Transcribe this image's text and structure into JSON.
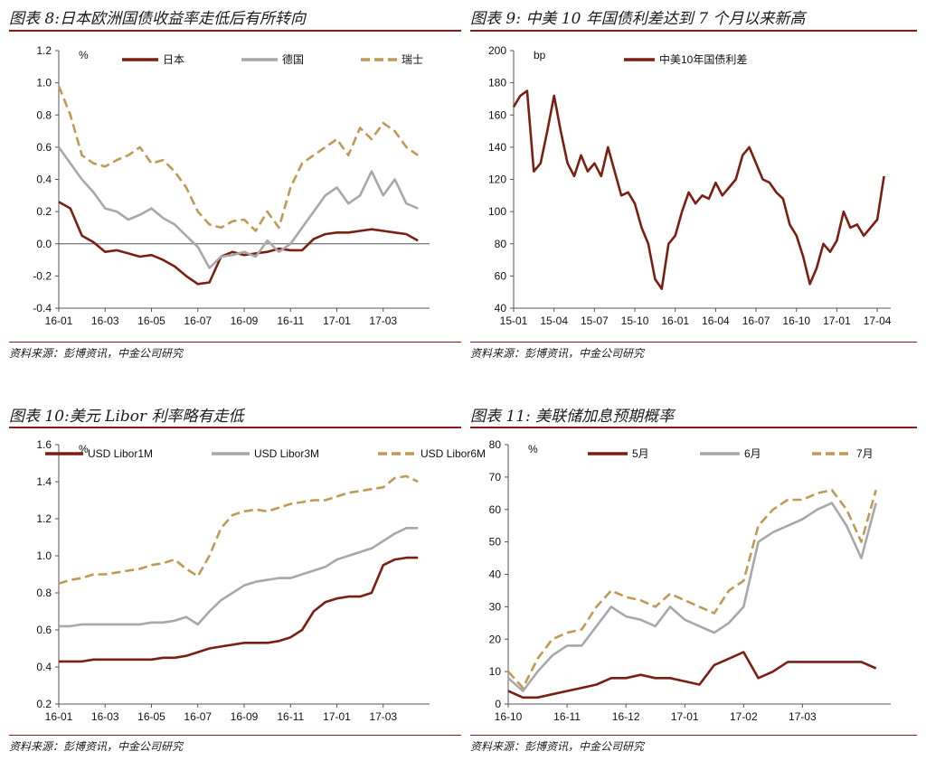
{
  "panels": [
    {
      "title": "图表 8:日本欧洲国债收益率走低后有所转向",
      "source": "资料来源：彭博资讯，中金公司研究"
    },
    {
      "title": "图表 9:  中美 10 年国债利差达到 7 个月以来新高",
      "source": "资料来源：彭博资讯，中金公司研究"
    },
    {
      "title": "图表 10:美元 Libor 利率略有走低",
      "source": "资料来源：彭博资讯，中金公司研究"
    },
    {
      "title": "图表 11:  美联储加息预期概率",
      "source": "资料来源：彭博资讯，中金公司研究"
    }
  ],
  "chart_data": [
    {
      "type": "line",
      "title": "图表 8:日本欧洲国债收益率走低后有所转向",
      "unit_label": "%",
      "ylim": [
        -0.4,
        1.2
      ],
      "yticks": [
        -0.4,
        -0.2,
        0.0,
        0.2,
        0.4,
        0.6,
        0.8,
        1.0,
        1.2
      ],
      "ytick_labels": [
        "-0.4",
        "-0.2",
        "0.0",
        "0.2",
        "0.4",
        "0.6",
        "0.8",
        "1.0",
        "1.2"
      ],
      "xlim": [
        0,
        16
      ],
      "xticks": [
        0,
        2,
        4,
        6,
        8,
        10,
        12,
        14
      ],
      "xtick_labels": [
        "16-01",
        "16-03",
        "16-05",
        "16-07",
        "16-09",
        "16-11",
        "17-01",
        "17-03"
      ],
      "zero_line": true,
      "x": [
        0,
        0.5,
        1,
        1.5,
        2,
        2.5,
        3,
        3.5,
        4,
        4.5,
        5,
        5.5,
        6,
        6.5,
        7,
        7.5,
        8,
        8.5,
        9,
        9.5,
        10,
        10.5,
        11,
        11.5,
        12,
        12.5,
        13,
        13.5,
        14,
        14.5,
        15,
        15.5
      ],
      "series": [
        {
          "name": "日本",
          "color": "#7a1f12",
          "dash": "",
          "values": [
            0.26,
            0.22,
            0.05,
            0.01,
            -0.05,
            -0.04,
            -0.06,
            -0.08,
            -0.07,
            -0.1,
            -0.14,
            -0.2,
            -0.25,
            -0.24,
            -0.08,
            -0.05,
            -0.07,
            -0.06,
            -0.05,
            -0.03,
            -0.04,
            -0.04,
            0.03,
            0.06,
            0.07,
            0.07,
            0.08,
            0.09,
            0.08,
            0.07,
            0.06,
            0.02
          ]
        },
        {
          "name": "德国",
          "color": "#a8a8a8",
          "dash": "",
          "values": [
            0.6,
            0.5,
            0.4,
            0.32,
            0.22,
            0.2,
            0.15,
            0.18,
            0.22,
            0.16,
            0.12,
            0.05,
            -0.02,
            -0.15,
            -0.08,
            -0.07,
            -0.05,
            -0.08,
            0.02,
            -0.05,
            0.0,
            0.1,
            0.2,
            0.3,
            0.35,
            0.25,
            0.3,
            0.45,
            0.3,
            0.4,
            0.25,
            0.22
          ]
        },
        {
          "name": "瑞士",
          "color": "#c09a55",
          "dash": "10,5",
          "values": [
            0.98,
            0.8,
            0.55,
            0.5,
            0.48,
            0.52,
            0.55,
            0.6,
            0.5,
            0.52,
            0.45,
            0.35,
            0.2,
            0.12,
            0.1,
            0.14,
            0.15,
            0.08,
            0.2,
            0.1,
            0.35,
            0.5,
            0.55,
            0.6,
            0.65,
            0.55,
            0.72,
            0.65,
            0.75,
            0.7,
            0.6,
            0.55
          ]
        }
      ]
    },
    {
      "type": "line",
      "title": "图表 9:  中美 10 年国债利差达到 7 个月以来新高",
      "unit_label": "bp",
      "ylim": [
        40,
        200
      ],
      "yticks": [
        40,
        60,
        80,
        100,
        120,
        140,
        160,
        180,
        200
      ],
      "ytick_labels": [
        "40",
        "60",
        "80",
        "100",
        "120",
        "140",
        "160",
        "180",
        "200"
      ],
      "xlim": [
        0,
        28
      ],
      "xticks": [
        0,
        3,
        6,
        9,
        12,
        15,
        18,
        21,
        24,
        27
      ],
      "xtick_labels": [
        "15-01",
        "15-04",
        "15-07",
        "15-10",
        "16-01",
        "16-04",
        "16-07",
        "16-10",
        "17-01",
        "17-04"
      ],
      "zero_line": false,
      "x": [
        0,
        0.5,
        1,
        1.5,
        2,
        2.5,
        3,
        3.5,
        4,
        4.5,
        5,
        5.5,
        6,
        6.5,
        7,
        7.5,
        8,
        8.5,
        9,
        9.5,
        10,
        10.5,
        11,
        11.5,
        12,
        12.5,
        13,
        13.5,
        14,
        14.5,
        15,
        15.5,
        16,
        16.5,
        17,
        17.5,
        18,
        18.5,
        19,
        19.5,
        20,
        20.5,
        21,
        21.5,
        22,
        22.5,
        23,
        23.5,
        24,
        24.5,
        25,
        25.5,
        26,
        26.5,
        27,
        27.5
      ],
      "series": [
        {
          "name": "中美10年国债利差",
          "color": "#7a1f12",
          "dash": "",
          "values": [
            165,
            172,
            175,
            125,
            130,
            150,
            172,
            150,
            130,
            122,
            135,
            125,
            130,
            122,
            140,
            125,
            110,
            112,
            105,
            90,
            80,
            58,
            52,
            80,
            85,
            100,
            112,
            105,
            110,
            108,
            118,
            110,
            115,
            120,
            135,
            140,
            130,
            120,
            118,
            112,
            108,
            92,
            85,
            72,
            55,
            65,
            80,
            75,
            82,
            100,
            90,
            92,
            85,
            90,
            95,
            122
          ]
        }
      ]
    },
    {
      "type": "line",
      "title": "图表 10:美元 Libor 利率略有走低",
      "unit_label": "%",
      "ylim": [
        0.2,
        1.6
      ],
      "yticks": [
        0.2,
        0.4,
        0.6,
        0.8,
        1.0,
        1.2,
        1.4,
        1.6
      ],
      "ytick_labels": [
        "0.2",
        "0.4",
        "0.6",
        "0.8",
        "1.0",
        "1.2",
        "1.4",
        "1.6"
      ],
      "xlim": [
        0,
        16
      ],
      "xticks": [
        0,
        2,
        4,
        6,
        8,
        10,
        12,
        14
      ],
      "xtick_labels": [
        "16-01",
        "16-03",
        "16-05",
        "16-07",
        "16-09",
        "16-11",
        "17-01",
        "17-03"
      ],
      "zero_line": false,
      "x": [
        0,
        0.5,
        1,
        1.5,
        2,
        2.5,
        3,
        3.5,
        4,
        4.5,
        5,
        5.5,
        6,
        6.5,
        7,
        7.5,
        8,
        8.5,
        9,
        9.5,
        10,
        10.5,
        11,
        11.5,
        12,
        12.5,
        13,
        13.5,
        14,
        14.5,
        15,
        15.5
      ],
      "series": [
        {
          "name": "USD Libor1M",
          "color": "#7a1f12",
          "dash": "",
          "values": [
            0.43,
            0.43,
            0.43,
            0.44,
            0.44,
            0.44,
            0.44,
            0.44,
            0.44,
            0.45,
            0.45,
            0.46,
            0.48,
            0.5,
            0.51,
            0.52,
            0.53,
            0.53,
            0.53,
            0.54,
            0.56,
            0.6,
            0.7,
            0.75,
            0.77,
            0.78,
            0.78,
            0.8,
            0.95,
            0.98,
            0.99,
            0.99
          ]
        },
        {
          "name": "USD Libor3M",
          "color": "#a8a8a8",
          "dash": "",
          "values": [
            0.62,
            0.62,
            0.63,
            0.63,
            0.63,
            0.63,
            0.63,
            0.63,
            0.64,
            0.64,
            0.65,
            0.67,
            0.63,
            0.7,
            0.76,
            0.8,
            0.84,
            0.86,
            0.87,
            0.88,
            0.88,
            0.9,
            0.92,
            0.94,
            0.98,
            1.0,
            1.02,
            1.04,
            1.08,
            1.12,
            1.15,
            1.15
          ]
        },
        {
          "name": "USD Libor6M",
          "color": "#c09a55",
          "dash": "10,5",
          "values": [
            0.85,
            0.87,
            0.88,
            0.9,
            0.9,
            0.91,
            0.92,
            0.93,
            0.95,
            0.96,
            0.98,
            0.93,
            0.89,
            1.0,
            1.15,
            1.22,
            1.24,
            1.25,
            1.24,
            1.26,
            1.28,
            1.29,
            1.3,
            1.3,
            1.32,
            1.34,
            1.35,
            1.36,
            1.37,
            1.42,
            1.43,
            1.4
          ]
        }
      ]
    },
    {
      "type": "line",
      "title": "图表 11:  美联储加息预期概率",
      "unit_label": "%",
      "ylim": [
        0,
        80
      ],
      "yticks": [
        0,
        10,
        20,
        30,
        40,
        50,
        60,
        70,
        80
      ],
      "ytick_labels": [
        "0",
        "10",
        "20",
        "30",
        "40",
        "50",
        "60",
        "70",
        "80"
      ],
      "xlim": [
        0,
        6.5
      ],
      "xticks": [
        0,
        1,
        2,
        3,
        4,
        5
      ],
      "xtick_labels": [
        "16-10",
        "16-11",
        "16-12",
        "17-01",
        "17-02",
        "17-03"
      ],
      "zero_line": false,
      "x": [
        0,
        0.25,
        0.5,
        0.75,
        1,
        1.25,
        1.5,
        1.75,
        2,
        2.25,
        2.5,
        2.75,
        3,
        3.25,
        3.5,
        3.75,
        4,
        4.25,
        4.5,
        4.75,
        5,
        5.25,
        5.5,
        5.75,
        6,
        6.25
      ],
      "series": [
        {
          "name": "5月",
          "color": "#7a1f12",
          "dash": "",
          "values": [
            4.0,
            2.0,
            2.0,
            3.0,
            4.0,
            5.0,
            6.0,
            8.0,
            8.0,
            9.0,
            8.0,
            8.0,
            7.0,
            6.0,
            12.0,
            14.0,
            16.0,
            8.0,
            10.0,
            13.0,
            13.0,
            13.0,
            13.0,
            13.0,
            13.0,
            11.0
          ]
        },
        {
          "name": "6月",
          "color": "#a8a8a8",
          "dash": "",
          "values": [
            8.0,
            4.0,
            10.0,
            15.0,
            18.0,
            18.0,
            24.0,
            30.0,
            27.0,
            26.0,
            24.0,
            30.0,
            26.0,
            24.0,
            22.0,
            25.0,
            30.0,
            50.0,
            53.0,
            55.0,
            57.0,
            60.0,
            62.0,
            55.0,
            45.0,
            62.0
          ]
        },
        {
          "name": "7月",
          "color": "#c09a55",
          "dash": "10,5",
          "values": [
            10.0,
            5.0,
            14.0,
            20.0,
            22.0,
            23.0,
            30.0,
            35.0,
            33.0,
            32.0,
            30.0,
            34.0,
            32.0,
            30.0,
            28.0,
            35.0,
            38.0,
            55.0,
            60.0,
            63.0,
            63.0,
            65.0,
            66.0,
            60.0,
            50.0,
            66.0
          ]
        }
      ]
    }
  ]
}
